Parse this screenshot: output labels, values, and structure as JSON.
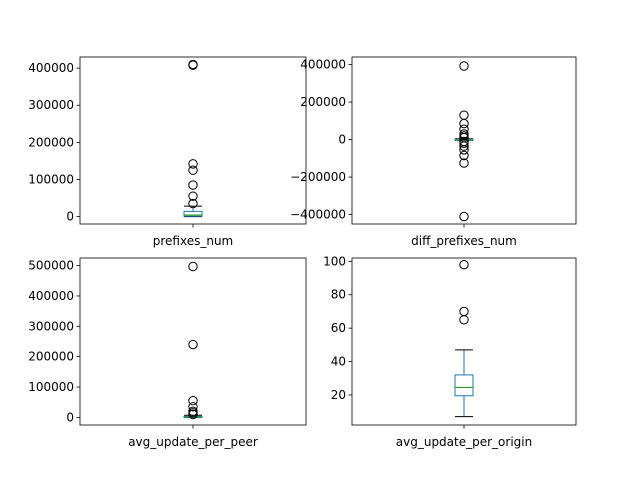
{
  "chart_data": [
    {
      "type": "box",
      "xlabel": "prefixes_num",
      "ylim": [
        -20000,
        430000
      ],
      "yticks": [
        0,
        100000,
        200000,
        300000,
        400000
      ],
      "ytick_labels": [
        "0",
        "100000",
        "200000",
        "300000",
        "400000"
      ],
      "box": {
        "whisker_low": 0,
        "q1": 1000,
        "median": 4000,
        "q3": 14000,
        "whisker_high": 28000
      },
      "outliers": [
        35000,
        55000,
        85000,
        125000,
        142000,
        408000,
        410000
      ]
    },
    {
      "type": "box",
      "xlabel": "diff_prefixes_num",
      "ylim": [
        -450000,
        440000
      ],
      "yticks": [
        -400000,
        -200000,
        0,
        200000,
        400000
      ],
      "ytick_labels": [
        "−400000",
        "−200000",
        "0",
        "200000",
        "400000"
      ],
      "box": {
        "whisker_low": -4000,
        "q1": -1500,
        "median": 0,
        "q3": 1500,
        "whisker_high": 4000
      },
      "outliers": [
        -410000,
        -125000,
        -85000,
        -55000,
        -35000,
        -20000,
        -10000,
        10000,
        20000,
        30000,
        55000,
        85000,
        130000,
        392000
      ]
    },
    {
      "type": "box",
      "xlabel": "avg_update_per_peer",
      "ylim": [
        -25000,
        525000
      ],
      "yticks": [
        0,
        100000,
        200000,
        300000,
        400000,
        500000
      ],
      "ytick_labels": [
        "0",
        "100000",
        "200000",
        "300000",
        "400000",
        "500000"
      ],
      "box": {
        "whisker_low": 0,
        "q1": 500,
        "median": 1500,
        "q3": 3500,
        "whisker_high": 7000
      },
      "outliers": [
        10000,
        15000,
        20000,
        35000,
        55000,
        240000,
        497000
      ]
    },
    {
      "type": "box",
      "xlabel": "avg_update_per_origin",
      "ylim": [
        2,
        102
      ],
      "yticks": [
        20,
        40,
        60,
        80,
        100
      ],
      "ytick_labels": [
        "20",
        "40",
        "60",
        "80",
        "100"
      ],
      "box": {
        "whisker_low": 7,
        "q1": 19.5,
        "median": 24.5,
        "q3": 32,
        "whisker_high": 47
      },
      "outliers": [
        65,
        70,
        98
      ]
    }
  ]
}
